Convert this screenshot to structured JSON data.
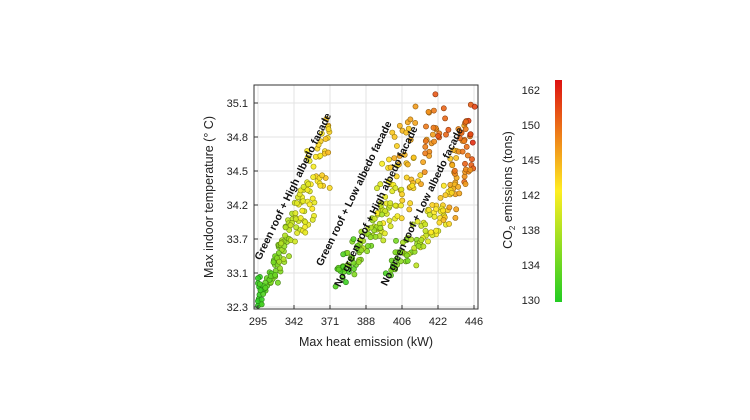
{
  "chart_data": {
    "type": "scatter",
    "xlabel": "Max heat emission (kW)",
    "ylabel": "Max indoor temperature (° C)",
    "x_ticks": [
      "295",
      "342",
      "371",
      "388",
      "406",
      "422",
      "446"
    ],
    "y_ticks": [
      "32.3",
      "33.1",
      "33.7",
      "34.2",
      "34.5",
      "34.8",
      "35.1"
    ],
    "colorbar": {
      "label_main": "CO",
      "label_sub": "2",
      "label_rest": " emissions (tons)",
      "ticks": [
        "130",
        "134",
        "138",
        "142",
        "145",
        "150",
        "162"
      ],
      "low_color": "#22cc22",
      "mid_color": "#ffee22",
      "high_color": "#dd1111"
    },
    "annotations": [
      "Green roof + High albedo facade",
      "Green roof + Low albedo facade",
      "No green roof + High albedo facade",
      "No green roof + Low albedo facade"
    ],
    "clusters": [
      {
        "name": "Green roof + High albedo facade",
        "x_start": 295,
        "x_end": 371,
        "y_range": [
          32.3,
          35.1
        ],
        "co2_range": [
          130,
          152
        ]
      },
      {
        "name": "Green roof + Low albedo facade",
        "x_start": 376,
        "x_end": 410,
        "y_range": [
          32.8,
          35.1
        ],
        "co2_range": [
          131,
          155
        ]
      },
      {
        "name": "No green roof + High albedo facade",
        "x_start": 380,
        "x_end": 425,
        "y_range": [
          33.2,
          35.2
        ],
        "co2_range": [
          132,
          160
        ]
      },
      {
        "name": "No green roof + Low albedo facade",
        "x_start": 400,
        "x_end": 450,
        "y_range": [
          32.9,
          35.3
        ],
        "co2_range": [
          132,
          164
        ]
      }
    ]
  }
}
